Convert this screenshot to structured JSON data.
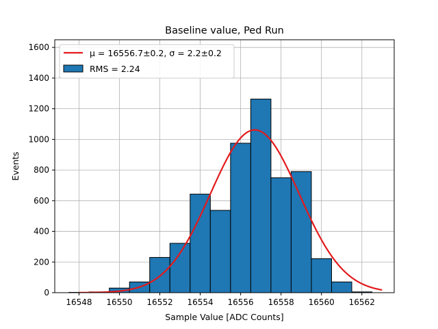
{
  "chart_data": {
    "type": "histogram",
    "title": "Baseline value, Ped Run",
    "xlabel": "Sample Value [ADC Counts]",
    "ylabel": "Events",
    "xlim": [
      16546.8,
      16563.6
    ],
    "ylim": [
      0,
      1650
    ],
    "xticks": [
      16548,
      16550,
      16552,
      16554,
      16556,
      16558,
      16560,
      16562
    ],
    "yticks": [
      0,
      200,
      400,
      600,
      800,
      1000,
      1200,
      1400,
      1600
    ],
    "grid": true,
    "legend_position": "top-left",
    "bin_edges": [
      16547.5,
      16548.5,
      16549.5,
      16550.5,
      16551.5,
      16552.5,
      16553.5,
      16554.5,
      16555.5,
      16556.5,
      16557.5,
      16558.5,
      16559.5,
      16560.5,
      16561.5,
      16562.5
    ],
    "counts": [
      2,
      5,
      30,
      70,
      230,
      322,
      643,
      537,
      975,
      1263,
      750,
      790,
      222,
      70,
      5
    ],
    "fit": {
      "label": "μ = 16556.7±0.2, σ = 2.2±0.2",
      "mu": 16556.7,
      "sigma": 2.2,
      "amplitude": 1062,
      "x_range": [
        16548,
        16563
      ],
      "color": "#e31a1c"
    },
    "histogram_label": "RMS = 2.24",
    "bar_color": "#1f77b4",
    "bar_edge_color": "#000000"
  }
}
